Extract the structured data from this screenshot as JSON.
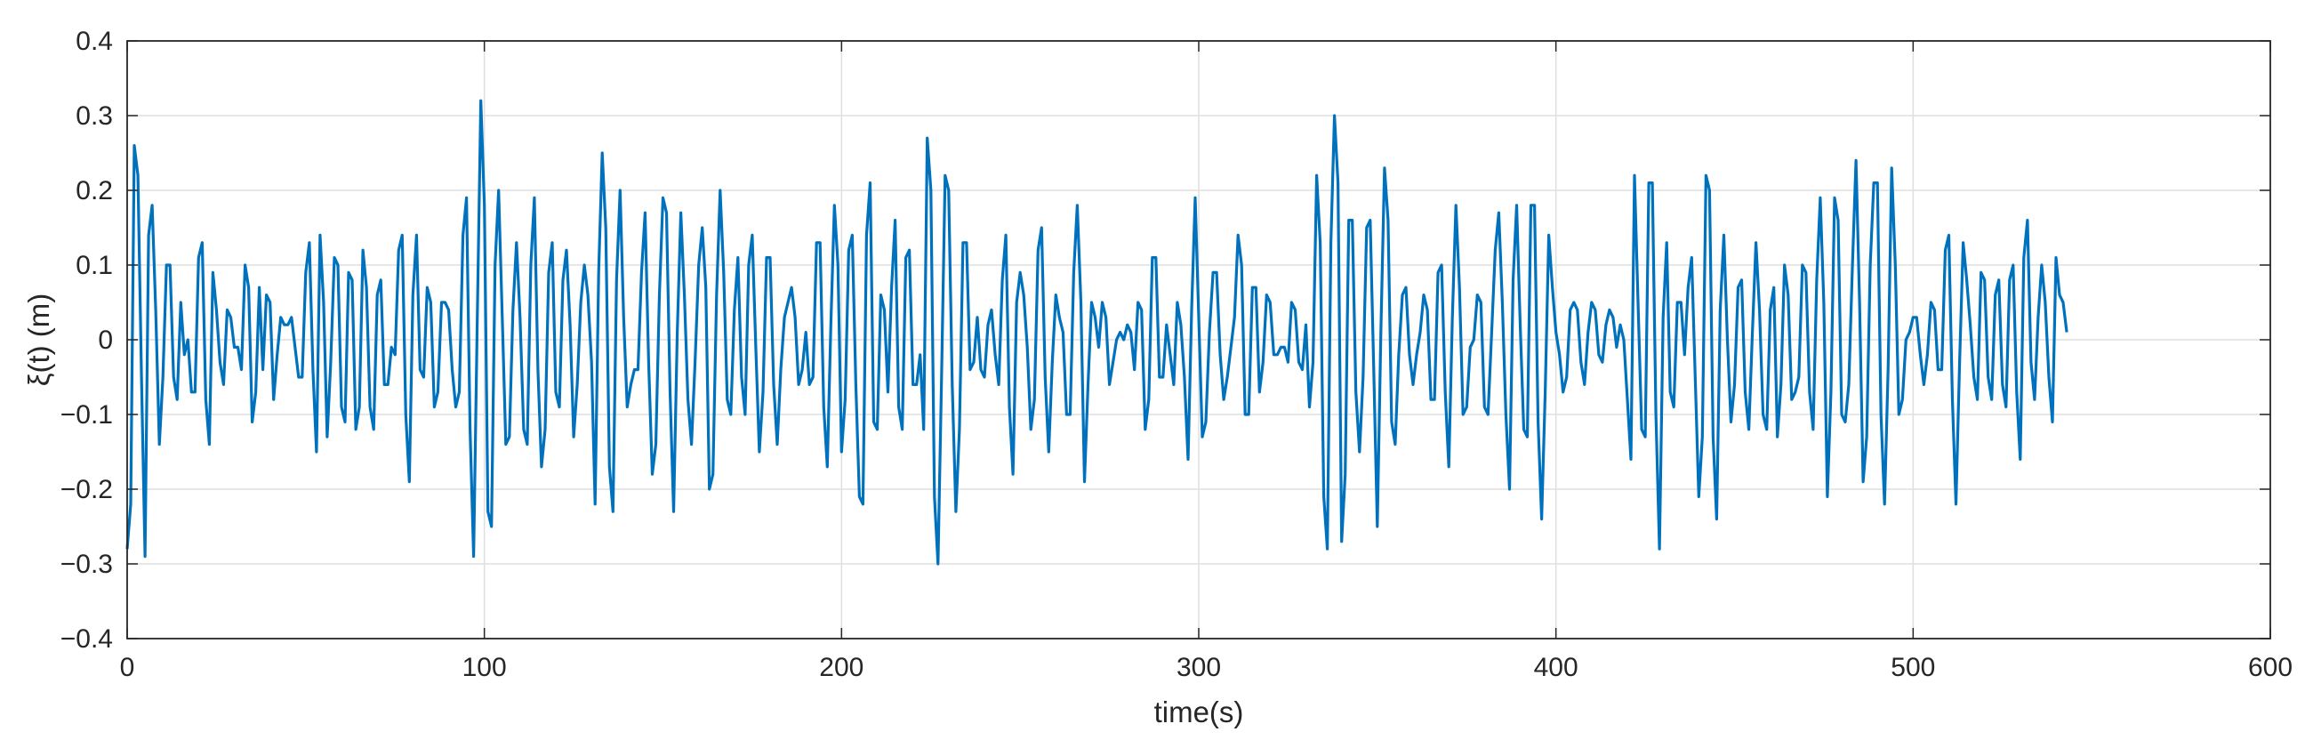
{
  "chart_data": {
    "type": "line",
    "title": "",
    "xlabel": "time(s)",
    "ylabel": "ξ(t) (m)",
    "xlim": [
      0,
      600
    ],
    "ylim": [
      -0.4,
      0.4
    ],
    "xticks": [
      0,
      100,
      200,
      300,
      400,
      500,
      600
    ],
    "yticks": [
      -0.4,
      -0.3,
      -0.2,
      -0.1,
      0,
      0.1,
      0.2,
      0.3,
      0.4
    ],
    "xtick_labels": [
      "0",
      "100",
      "200",
      "300",
      "400",
      "500",
      "600"
    ],
    "ytick_labels": [
      "−0.4",
      "−0.3",
      "−0.2",
      "−0.1",
      "0",
      "0.1",
      "0.2",
      "0.3",
      "0.4"
    ],
    "grid": true,
    "line_color": "#0072bd",
    "series": [
      {
        "sample_interval": 1,
        "x_start": 0,
        "values": [
          -0.28,
          -0.22,
          0.26,
          0.22,
          -0.05,
          -0.29,
          0.14,
          0.18,
          0.04,
          -0.14,
          -0.05,
          0.1,
          0.1,
          -0.05,
          -0.08,
          0.05,
          -0.02,
          0.0,
          -0.07,
          -0.07,
          0.11,
          0.13,
          -0.08,
          -0.14,
          0.09,
          0.04,
          -0.03,
          -0.06,
          0.04,
          0.03,
          -0.01,
          -0.01,
          -0.04,
          0.1,
          0.07,
          -0.11,
          -0.07,
          0.07,
          -0.04,
          0.06,
          0.05,
          -0.08,
          -0.02,
          0.03,
          0.02,
          0.02,
          0.03,
          -0.01,
          -0.05,
          -0.05,
          0.09,
          0.13,
          -0.04,
          -0.15,
          0.14,
          0.05,
          -0.13,
          -0.03,
          0.11,
          0.1,
          -0.09,
          -0.11,
          0.09,
          0.08,
          -0.12,
          -0.09,
          0.12,
          0.07,
          -0.09,
          -0.12,
          0.06,
          0.08,
          -0.06,
          -0.06,
          -0.01,
          -0.02,
          0.12,
          0.14,
          -0.1,
          -0.19,
          0.06,
          0.14,
          -0.04,
          -0.05,
          0.07,
          0.05,
          -0.09,
          -0.07,
          0.05,
          0.05,
          0.04,
          -0.04,
          -0.09,
          -0.07,
          0.14,
          0.19,
          -0.12,
          -0.29,
          0.02,
          0.32,
          0.18,
          -0.23,
          -0.25,
          0.1,
          0.2,
          0.03,
          -0.14,
          -0.13,
          0.04,
          0.13,
          0.03,
          -0.12,
          -0.14,
          0.1,
          0.19,
          -0.04,
          -0.17,
          -0.12,
          0.09,
          0.13,
          -0.07,
          -0.09,
          0.08,
          0.12,
          0.02,
          -0.13,
          -0.06,
          0.05,
          0.1,
          0.06,
          -0.03,
          -0.22,
          0.09,
          0.25,
          0.15,
          -0.17,
          -0.23,
          0.08,
          0.2,
          0.03,
          -0.09,
          -0.06,
          -0.04,
          -0.04,
          0.09,
          0.17,
          -0.03,
          -0.18,
          -0.14,
          0.06,
          0.19,
          0.17,
          -0.07,
          -0.23,
          0.01,
          0.17,
          0.06,
          -0.08,
          -0.14,
          -0.03,
          0.1,
          0.15,
          0.07,
          -0.2,
          -0.18,
          0.06,
          0.2,
          0.09,
          -0.08,
          -0.1,
          0.04,
          0.11,
          -0.05,
          -0.1,
          0.1,
          0.14,
          -0.01,
          -0.15,
          -0.07,
          0.11,
          0.11,
          -0.06,
          -0.14,
          -0.04,
          0.03,
          0.05,
          0.07,
          0.03,
          -0.06,
          -0.04,
          0.01,
          -0.06,
          -0.05,
          0.13,
          0.13,
          -0.09,
          -0.17,
          0.02,
          0.18,
          0.1,
          -0.15,
          -0.08,
          0.12,
          0.14,
          -0.06,
          -0.21,
          -0.22,
          0.14,
          0.21,
          -0.11,
          -0.12,
          0.06,
          0.04,
          -0.07,
          0.07,
          0.16,
          -0.09,
          -0.12,
          0.11,
          0.12,
          -0.06,
          -0.06,
          -0.02,
          -0.12,
          0.27,
          0.2,
          -0.21,
          -0.3,
          -0.05,
          0.22,
          0.2,
          -0.06,
          -0.23,
          -0.12,
          0.13,
          0.13,
          -0.04,
          -0.03,
          0.03,
          -0.04,
          -0.05,
          0.02,
          0.04,
          -0.02,
          -0.06,
          0.08,
          0.14,
          -0.09,
          -0.18,
          0.05,
          0.09,
          0.06,
          -0.01,
          -0.12,
          -0.08,
          0.12,
          0.15,
          -0.05,
          -0.15,
          -0.03,
          0.06,
          0.03,
          0.01,
          -0.1,
          -0.1,
          0.09,
          0.18,
          0.05,
          -0.19,
          -0.06,
          0.05,
          0.03,
          -0.01,
          0.05,
          0.03,
          -0.06,
          -0.03,
          0.0,
          0.01,
          0.0,
          0.02,
          0.01,
          -0.04,
          0.05,
          0.04,
          -0.12,
          -0.08,
          0.11,
          0.11,
          -0.05,
          -0.05,
          0.02,
          -0.02,
          -0.06,
          0.05,
          0.02,
          -0.05,
          -0.16,
          0.04,
          0.19,
          0.03,
          -0.13,
          -0.11,
          0.01,
          0.09,
          0.09,
          -0.02,
          -0.08,
          -0.05,
          -0.01,
          0.03,
          0.14,
          0.1,
          -0.1,
          -0.1,
          0.07,
          0.07,
          -0.07,
          -0.03,
          0.06,
          0.05,
          -0.02,
          -0.02,
          -0.01,
          -0.01,
          -0.03,
          0.05,
          0.04,
          -0.03,
          -0.04,
          0.02,
          -0.09,
          -0.03,
          0.22,
          0.13,
          -0.21,
          -0.28,
          0.13,
          0.3,
          0.21,
          -0.27,
          -0.18,
          0.16,
          0.16,
          -0.07,
          -0.15,
          -0.05,
          0.15,
          0.16,
          -0.04,
          -0.25,
          0.01,
          0.23,
          0.16,
          -0.11,
          -0.14,
          -0.02,
          0.06,
          0.07,
          -0.02,
          -0.06,
          -0.02,
          0.01,
          0.06,
          0.04,
          -0.08,
          -0.08,
          0.09,
          0.1,
          -0.07,
          -0.17,
          0.03,
          0.18,
          0.07,
          -0.1,
          -0.09,
          -0.01,
          0.0,
          0.06,
          0.05,
          -0.09,
          -0.1,
          0.01,
          0.12,
          0.17,
          0.05,
          -0.1,
          -0.2,
          0.08,
          0.18,
          0.02,
          -0.12,
          -0.13,
          0.18,
          0.18,
          -0.11,
          -0.24,
          -0.07,
          0.14,
          0.07,
          0.01,
          -0.02,
          -0.07,
          -0.05,
          0.04,
          0.05,
          0.04,
          -0.03,
          -0.06,
          0.01,
          0.05,
          0.04,
          -0.02,
          -0.03,
          0.02,
          0.04,
          0.03,
          -0.01,
          0.02,
          0.0,
          -0.08,
          -0.16,
          0.22,
          0.05,
          -0.12,
          -0.13,
          0.21,
          0.21,
          -0.1,
          -0.28,
          0.03,
          0.13,
          -0.07,
          -0.09,
          0.05,
          0.05,
          -0.02,
          0.07,
          0.11,
          -0.05,
          -0.21,
          -0.13,
          0.22,
          0.2,
          -0.13,
          -0.24,
          0.04,
          0.14,
          0.0,
          -0.11,
          -0.06,
          0.07,
          0.08,
          -0.07,
          -0.12,
          0.01,
          0.13,
          0.04,
          -0.1,
          -0.12,
          0.04,
          0.07,
          -0.13,
          -0.06,
          0.1,
          0.06,
          -0.08,
          -0.07,
          -0.05,
          0.1,
          0.09,
          -0.07,
          -0.12,
          0.08,
          0.19,
          0.05,
          -0.21,
          -0.07,
          0.19,
          0.16,
          -0.1,
          -0.11,
          -0.06,
          0.1,
          0.24,
          0.05,
          -0.19,
          -0.13,
          0.1,
          0.21,
          0.21,
          -0.1,
          -0.22,
          -0.04,
          0.23,
          0.1,
          -0.1,
          -0.08,
          0.0,
          0.01,
          0.03,
          0.03,
          -0.02,
          -0.06,
          -0.02,
          0.05,
          0.04,
          -0.04,
          -0.04,
          0.12,
          0.14,
          -0.08,
          -0.22,
          -0.03,
          0.13,
          0.08,
          0.02,
          -0.05,
          -0.08,
          0.09,
          0.08,
          -0.05,
          -0.08,
          0.06,
          0.08,
          -0.06,
          -0.09,
          0.08,
          0.1,
          -0.07,
          -0.16,
          0.11,
          0.16,
          -0.03,
          -0.08,
          0.03,
          0.1,
          0.05,
          -0.05,
          -0.11,
          0.11,
          0.06,
          0.05,
          0.01
        ]
      }
    ]
  }
}
